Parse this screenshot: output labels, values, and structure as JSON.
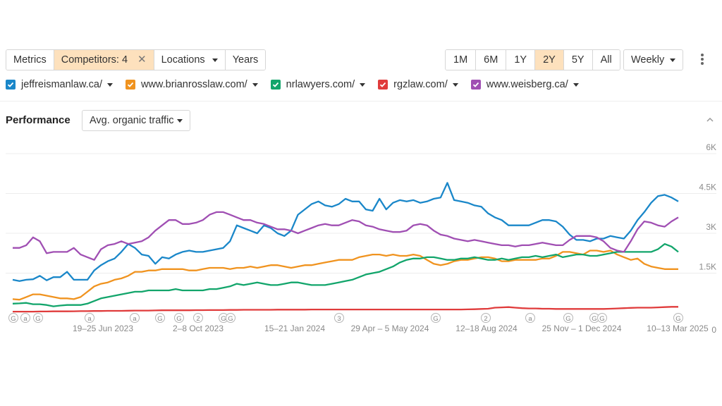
{
  "toolbar": {
    "left_buttons": [
      {
        "label": "Metrics",
        "active": false
      },
      {
        "label": "Competitors: 4",
        "active": true,
        "closable": true
      },
      {
        "label": "Locations",
        "dropdown": true
      },
      {
        "label": "Years"
      }
    ],
    "range_buttons": [
      "1M",
      "6M",
      "1Y",
      "2Y",
      "5Y",
      "All"
    ],
    "range_selected": "2Y",
    "interval": "Weekly",
    "more_icon": "kebab-icon"
  },
  "competitors": [
    {
      "label": "jeffreismanlaw.ca/",
      "color": "#1a87c9"
    },
    {
      "label": "www.brianrosslaw.com/",
      "color": "#f0931f"
    },
    {
      "label": "nrlawyers.com/",
      "color": "#12a56b"
    },
    {
      "label": "rgzlaw.com/",
      "color": "#e03c3c"
    },
    {
      "label": "www.weisberg.ca/",
      "color": "#a04fb3"
    }
  ],
  "section": {
    "title": "Performance",
    "metric": "Avg. organic traffic"
  },
  "chart_data": {
    "type": "line",
    "y_ticks": [
      "6K",
      "4.5K",
      "3K",
      "1.5K",
      "0"
    ],
    "ylim": [
      0,
      6000
    ],
    "x_tick_labels": [
      "19–25 Jun 2023",
      "2–8 Oct 2023",
      "15–21 Jan 2024",
      "29 Apr – 5 May 2024",
      "12–18 Aug 2024",
      "25 Nov – 1 Dec 2024",
      "10–13 Mar 2025"
    ],
    "annotations": [
      "G",
      "a",
      "G",
      "a",
      "a",
      "G",
      "G",
      "2",
      "G",
      "G",
      "3",
      "G",
      "2",
      "a",
      "G",
      "G",
      "G",
      "G"
    ],
    "series": [
      {
        "name": "jeffreismanlaw.ca/",
        "color": "#1a87c9",
        "values": [
          1250,
          1200,
          1250,
          1270,
          1400,
          1230,
          1350,
          1350,
          1550,
          1250,
          1250,
          1250,
          1600,
          1800,
          1950,
          2050,
          2300,
          2600,
          2450,
          2200,
          2150,
          1850,
          2100,
          2050,
          2200,
          2300,
          2350,
          2300,
          2300,
          2350,
          2400,
          2450,
          2700,
          3300,
          3200,
          3100,
          3000,
          3300,
          3200,
          3000,
          2900,
          3100,
          3700,
          3900,
          4100,
          4200,
          4050,
          4000,
          4100,
          4300,
          4200,
          4200,
          3900,
          3850,
          4300,
          3900,
          4150,
          4250,
          4200,
          4250,
          4150,
          4200,
          4300,
          4350,
          4900,
          4250,
          4200,
          4150,
          4050,
          4000,
          3750,
          3600,
          3500,
          3300,
          3300,
          3300,
          3300,
          3400,
          3500,
          3500,
          3450,
          3250,
          2950,
          2750,
          2750,
          2700,
          2800,
          2800,
          2900,
          2850,
          2800,
          3100,
          3500,
          3800,
          4150,
          4400,
          4450,
          4350,
          4200
        ]
      },
      {
        "name": "www.brianrosslaw.com/",
        "color": "#f0931f",
        "values": [
          520,
          500,
          600,
          700,
          700,
          650,
          600,
          550,
          550,
          520,
          600,
          800,
          1000,
          1100,
          1150,
          1250,
          1300,
          1400,
          1550,
          1550,
          1600,
          1600,
          1650,
          1650,
          1650,
          1650,
          1600,
          1600,
          1650,
          1700,
          1700,
          1700,
          1650,
          1700,
          1700,
          1750,
          1700,
          1750,
          1800,
          1800,
          1750,
          1700,
          1750,
          1800,
          1800,
          1850,
          1900,
          1950,
          2000,
          2000,
          2000,
          2100,
          2150,
          2200,
          2200,
          2150,
          2200,
          2150,
          2150,
          2200,
          2150,
          2000,
          1850,
          1800,
          1850,
          1950,
          2000,
          2000,
          2050,
          2100,
          2100,
          2050,
          1950,
          1950,
          2000,
          2000,
          2000,
          2000,
          2050,
          2050,
          2150,
          2300,
          2300,
          2250,
          2200,
          2350,
          2350,
          2300,
          2350,
          2200,
          2100,
          2000,
          2050,
          1850,
          1750,
          1700,
          1650,
          1650,
          1650
        ]
      },
      {
        "name": "nrlawyers.com/",
        "color": "#12a56b",
        "values": [
          350,
          360,
          380,
          330,
          330,
          300,
          250,
          280,
          300,
          300,
          300,
          350,
          450,
          550,
          600,
          650,
          700,
          750,
          800,
          800,
          850,
          850,
          850,
          850,
          900,
          850,
          850,
          850,
          850,
          900,
          900,
          950,
          1000,
          1100,
          1050,
          1100,
          1150,
          1100,
          1050,
          1050,
          1100,
          1150,
          1150,
          1100,
          1050,
          1050,
          1050,
          1100,
          1150,
          1200,
          1250,
          1350,
          1450,
          1500,
          1550,
          1650,
          1750,
          1900,
          2000,
          2050,
          2050,
          2100,
          2100,
          2050,
          2000,
          2000,
          2050,
          2050,
          2100,
          2050,
          2000,
          2000,
          2050,
          2000,
          2050,
          2100,
          2100,
          2150,
          2100,
          2150,
          2200,
          2100,
          2150,
          2200,
          2200,
          2150,
          2150,
          2200,
          2250,
          2300,
          2300,
          2300,
          2300,
          2300,
          2300,
          2400,
          2600,
          2500,
          2300
        ]
      },
      {
        "name": "rgzlaw.com/",
        "color": "#e03c3c",
        "values": [
          50,
          50,
          50,
          50,
          55,
          55,
          60,
          60,
          60,
          65,
          70,
          70,
          75,
          75,
          80,
          80,
          80,
          85,
          90,
          90,
          90,
          95,
          100,
          100,
          100,
          100,
          100,
          105,
          105,
          110,
          110,
          110,
          115,
          115,
          120,
          120,
          120,
          120,
          120,
          125,
          125,
          125,
          125,
          125,
          130,
          130,
          130,
          130,
          130,
          130,
          130,
          130,
          130,
          130,
          130,
          130,
          130,
          130,
          130,
          130,
          130,
          130,
          130,
          130,
          130,
          130,
          130,
          135,
          140,
          150,
          160,
          200,
          210,
          220,
          200,
          180,
          170,
          170,
          160,
          160,
          150,
          150,
          150,
          150,
          150,
          150,
          150,
          150,
          160,
          170,
          180,
          190,
          200,
          200,
          200,
          210,
          220,
          230,
          230
        ]
      },
      {
        "name": "www.weisberg.ca/",
        "color": "#a04fb3",
        "values": [
          2450,
          2450,
          2550,
          2850,
          2700,
          2250,
          2300,
          2300,
          2300,
          2450,
          2200,
          2100,
          2000,
          2400,
          2550,
          2600,
          2700,
          2600,
          2650,
          2700,
          2850,
          3100,
          3300,
          3500,
          3500,
          3350,
          3350,
          3400,
          3500,
          3700,
          3800,
          3800,
          3700,
          3600,
          3500,
          3500,
          3400,
          3350,
          3250,
          3150,
          3150,
          3100,
          3000,
          3100,
          3200,
          3300,
          3350,
          3300,
          3300,
          3400,
          3500,
          3450,
          3300,
          3250,
          3150,
          3100,
          3050,
          3050,
          3100,
          3300,
          3350,
          3300,
          3100,
          2950,
          2900,
          2800,
          2750,
          2700,
          2750,
          2700,
          2650,
          2600,
          2550,
          2550,
          2500,
          2550,
          2550,
          2600,
          2650,
          2600,
          2550,
          2550,
          2750,
          2900,
          2900,
          2900,
          2850,
          2700,
          2450,
          2350,
          2300,
          2700,
          3150,
          3450,
          3400,
          3300,
          3250,
          3450,
          3600
        ]
      }
    ]
  }
}
